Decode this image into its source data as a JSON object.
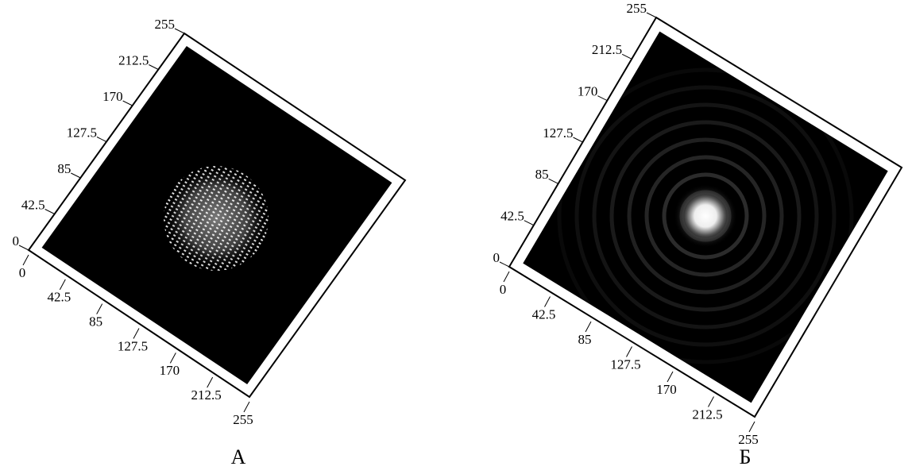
{
  "chart_data": [
    {
      "type": "surface",
      "xlim": [
        0,
        255
      ],
      "ylim": [
        0,
        255
      ],
      "xticks": [
        0,
        42.5,
        85,
        127.5,
        170,
        212.5,
        255
      ],
      "yticks": [
        0,
        42.5,
        85,
        127.5,
        170,
        212.5,
        255
      ],
      "caption": "А"
    },
    {
      "type": "surface",
      "xlim": [
        0,
        255
      ],
      "ylim": [
        0,
        255
      ],
      "xticks": [
        0,
        42.5,
        85,
        127.5,
        170,
        212.5,
        255
      ],
      "yticks": [
        0,
        42.5,
        85,
        127.5,
        170,
        212.5,
        255
      ],
      "caption": "Б"
    }
  ]
}
